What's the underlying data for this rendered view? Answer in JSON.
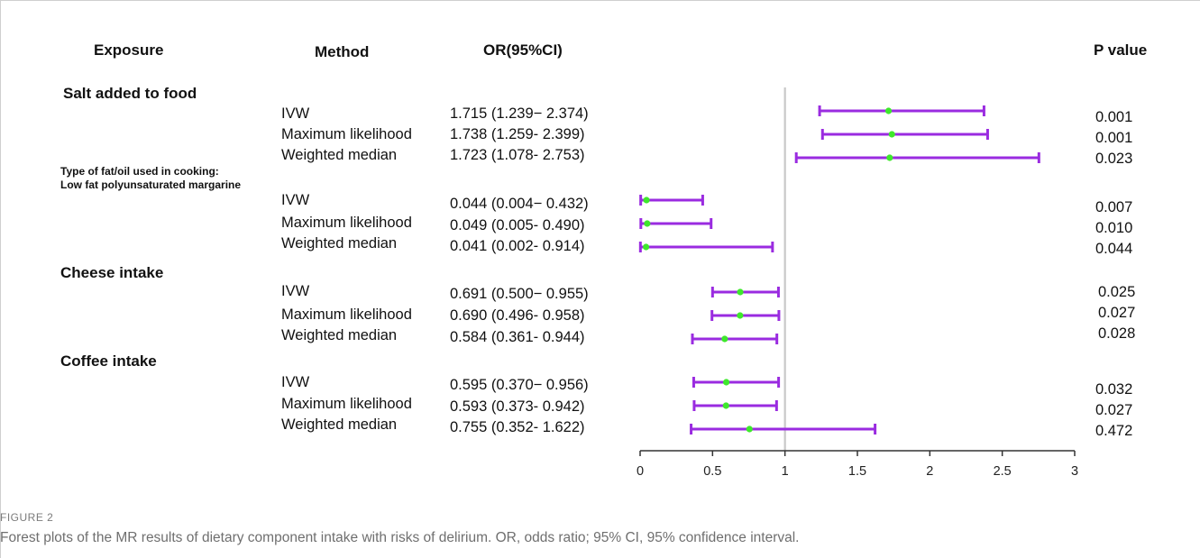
{
  "headers": {
    "exposure": "Exposure",
    "method": "Method",
    "or_ci": "OR(95%CI)",
    "p_value": "P value"
  },
  "groups": [
    {
      "name": "Salt added to food",
      "rows": [
        {
          "method": "IVW",
          "or_text": "1.715 (1.239− 2.374)",
          "p": "0.001"
        },
        {
          "method": "Maximum likelihood",
          "or_text": "1.738 (1.259- 2.399)",
          "p": "0.001"
        },
        {
          "method": "Weighted median",
          "or_text": "1.723 (1.078- 2.753)",
          "p": "0.023"
        }
      ]
    },
    {
      "name": "Type of fat/oil used in cooking:",
      "name_line2": "Low fat polyunsaturated margarine",
      "rows": [
        {
          "method": "IVW",
          "or_text": "0.044 (0.004− 0.432)",
          "p": "0.007"
        },
        {
          "method": "Maximum likelihood",
          "or_text": "0.049 (0.005- 0.490)",
          "p": "0.010"
        },
        {
          "method": "Weighted median",
          "or_text": "0.041 (0.002- 0.914)",
          "p": "0.044"
        }
      ]
    },
    {
      "name": "Cheese intake",
      "rows": [
        {
          "method": "IVW",
          "or_text": "0.691 (0.500− 0.955)",
          "p": "0.025"
        },
        {
          "method": "Maximum likelihood",
          "or_text": "0.690 (0.496- 0.958)",
          "p": "0.027"
        },
        {
          "method": "Weighted median",
          "or_text": "0.584 (0.361- 0.944)",
          "p": "0.028"
        }
      ]
    },
    {
      "name": "Coffee intake",
      "rows": [
        {
          "method": "IVW",
          "or_text": "0.595 (0.370− 0.956)",
          "p": "0.032"
        },
        {
          "method": "Maximum likelihood",
          "or_text": "0.593 (0.373- 0.942)",
          "p": "0.027"
        },
        {
          "method": "Weighted median",
          "or_text": "0.755 (0.352- 1.622)",
          "p": "0.472"
        }
      ]
    }
  ],
  "figure_label": "FIGURE 2",
  "caption": "Forest plots of the MR results of dietary component intake with risks of delirium. OR, odds ratio; 95% CI, 95% confidence interval.",
  "chart_data": {
    "type": "forest",
    "xlim": [
      0,
      3
    ],
    "xticks": [
      "0",
      "0.5",
      "1",
      "1.5",
      "2",
      "2.5",
      "3"
    ],
    "reference_line": 1,
    "colors": {
      "interval": "#9a2be0",
      "point": "#3ee82c",
      "reference": "#c8c8c8",
      "axis": "#333333"
    },
    "estimates": [
      {
        "or": 1.715,
        "lower": 1.239,
        "upper": 2.374
      },
      {
        "or": 1.738,
        "lower": 1.259,
        "upper": 2.399
      },
      {
        "or": 1.723,
        "lower": 1.078,
        "upper": 2.753
      },
      {
        "or": 0.044,
        "lower": 0.004,
        "upper": 0.432
      },
      {
        "or": 0.049,
        "lower": 0.005,
        "upper": 0.49
      },
      {
        "or": 0.041,
        "lower": 0.002,
        "upper": 0.914
      },
      {
        "or": 0.691,
        "lower": 0.5,
        "upper": 0.955
      },
      {
        "or": 0.69,
        "lower": 0.496,
        "upper": 0.958
      },
      {
        "or": 0.584,
        "lower": 0.361,
        "upper": 0.944
      },
      {
        "or": 0.595,
        "lower": 0.37,
        "upper": 0.956
      },
      {
        "or": 0.593,
        "lower": 0.373,
        "upper": 0.942
      },
      {
        "or": 0.755,
        "lower": 0.352,
        "upper": 1.622
      }
    ]
  }
}
